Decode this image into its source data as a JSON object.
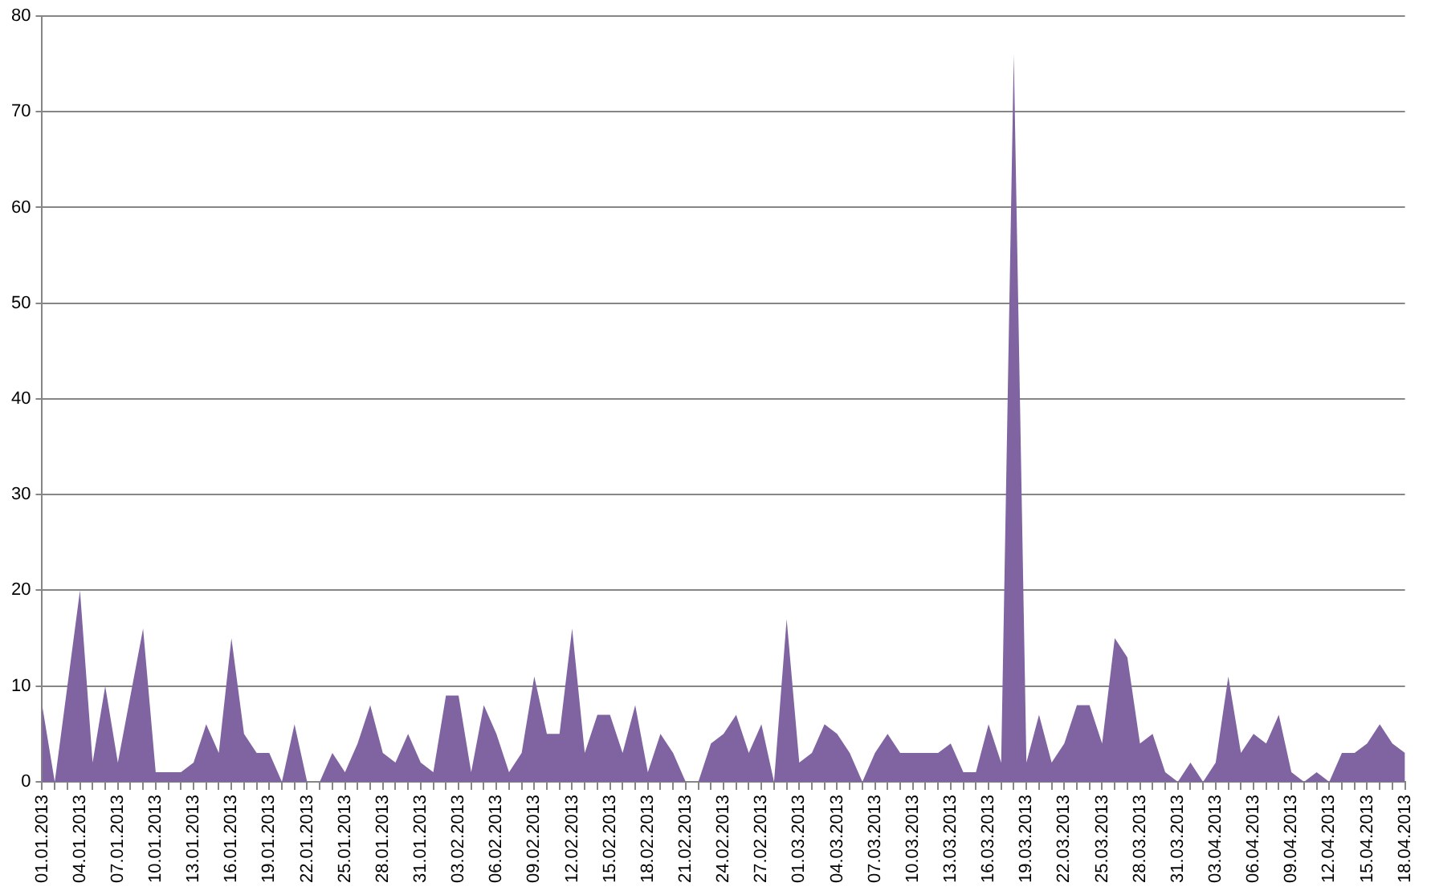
{
  "chart_data": {
    "type": "area",
    "categories": [
      "01.01.2013",
      null,
      null,
      "04.01.2013",
      null,
      null,
      "07.01.2013",
      null,
      null,
      "10.01.2013",
      null,
      null,
      "13.01.2013",
      null,
      null,
      "16.01.2013",
      null,
      null,
      "19.01.2013",
      null,
      null,
      "22.01.2013",
      null,
      null,
      "25.01.2013",
      null,
      null,
      "28.01.2013",
      null,
      null,
      "31.01.2013",
      null,
      null,
      "03.02.2013",
      null,
      null,
      "06.02.2013",
      null,
      null,
      "09.02.2013",
      null,
      null,
      "12.02.2013",
      null,
      null,
      "15.02.2013",
      null,
      null,
      "18.02.2013",
      null,
      null,
      "21.02.2013",
      null,
      null,
      "24.02.2013",
      null,
      null,
      "27.02.2013",
      null,
      null,
      "01.03.2013",
      null,
      null,
      "04.03.2013",
      null,
      null,
      "07.03.2013",
      null,
      null,
      "10.03.2013",
      null,
      null,
      "13.03.2013",
      null,
      null,
      "16.03.2013",
      null,
      null,
      "19.03.2013",
      null,
      null,
      "22.03.2013",
      null,
      null,
      "25.03.2013",
      null,
      null,
      "28.03.2013",
      null,
      null,
      "31.03.2013",
      null,
      null,
      "03.04.2013",
      null,
      null,
      "06.04.2013",
      null,
      null,
      "09.04.2013",
      null,
      null,
      "12.04.2013",
      null,
      null,
      "15.04.2013",
      null,
      null,
      "18.04.2013"
    ],
    "series": [
      {
        "color": "#8064a2",
        "values": [
          8,
          0,
          10,
          20,
          2,
          10,
          2,
          9,
          16,
          1,
          1,
          1,
          2,
          6,
          3,
          15,
          5,
          3,
          3,
          0,
          6,
          0,
          0,
          3,
          1,
          4,
          8,
          3,
          2,
          5,
          2,
          1,
          9,
          9,
          1,
          8,
          5,
          1,
          3,
          11,
          5,
          5,
          16,
          3,
          7,
          7,
          3,
          8,
          1,
          5,
          3,
          0,
          0,
          4,
          5,
          7,
          3,
          6,
          0,
          17,
          2,
          3,
          6,
          5,
          3,
          0,
          3,
          5,
          3,
          3,
          3,
          3,
          4,
          1,
          1,
          6,
          2,
          76,
          2,
          7,
          2,
          4,
          8,
          8,
          4,
          15,
          13,
          4,
          5,
          1,
          0,
          2,
          0,
          2,
          11,
          3,
          5,
          4,
          7,
          1,
          0,
          1,
          0,
          3,
          3,
          4,
          6,
          4,
          3
        ]
      }
    ],
    "ylim": [
      0,
      80
    ],
    "yticks": [
      0,
      10,
      20,
      30,
      40,
      50,
      60,
      70,
      80
    ],
    "grid": "y",
    "legend": false
  }
}
